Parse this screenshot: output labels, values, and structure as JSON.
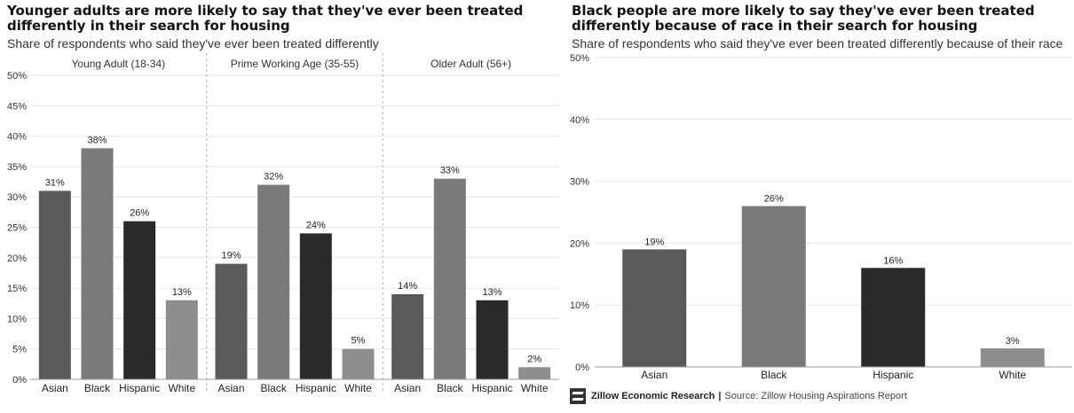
{
  "chart_data": [
    {
      "type": "bar",
      "title": "Younger adults are more likely to say that they've ever been treated differently in their search for housing",
      "subtitle": "Share of respondents who said they've ever been treated differently",
      "ylim": [
        0,
        50
      ],
      "yticks": [
        "0%",
        "5%",
        "10%",
        "15%",
        "20%",
        "25%",
        "30%",
        "35%",
        "40%",
        "45%",
        "50%"
      ],
      "categories": [
        "Asian",
        "Black",
        "Hispanic",
        "White"
      ],
      "colors": {
        "Asian": "#5a5a5a",
        "Black": "#7a7a7a",
        "Hispanic": "#2a2a2a",
        "White": "#8e8e8e"
      },
      "groups": [
        {
          "name": "Young Adult (18-34)",
          "values": [
            31,
            38,
            26,
            13
          ],
          "labels": [
            "31%",
            "38%",
            "26%",
            "13%"
          ]
        },
        {
          "name": "Prime Working Age (35-55)",
          "values": [
            19,
            32,
            24,
            5
          ],
          "labels": [
            "19%",
            "32%",
            "24%",
            "5%"
          ]
        },
        {
          "name": "Older Adult (56+)",
          "values": [
            14,
            33,
            13,
            2
          ],
          "labels": [
            "14%",
            "33%",
            "13%",
            "2%"
          ]
        }
      ]
    },
    {
      "type": "bar",
      "title": "Black people are more likely to say they've ever been treated differently because of race in their search for housing",
      "subtitle": "Share of respondents who said they've ever been treated differently because of their race",
      "ylim": [
        0,
        50
      ],
      "yticks": [
        "0%",
        "10%",
        "20%",
        "30%",
        "40%",
        "50%"
      ],
      "categories": [
        "Asian",
        "Black",
        "Hispanic",
        "White"
      ],
      "colors": {
        "Asian": "#5a5a5a",
        "Black": "#7a7a7a",
        "Hispanic": "#2a2a2a",
        "White": "#8e8e8e"
      },
      "values": [
        19,
        26,
        16,
        3
      ],
      "labels": [
        "19%",
        "26%",
        "16%",
        "3%"
      ]
    }
  ],
  "footer": {
    "brand": "Zillow Economic Research",
    "sep": "|",
    "source": "Source: Zillow Housing Aspirations Report"
  }
}
